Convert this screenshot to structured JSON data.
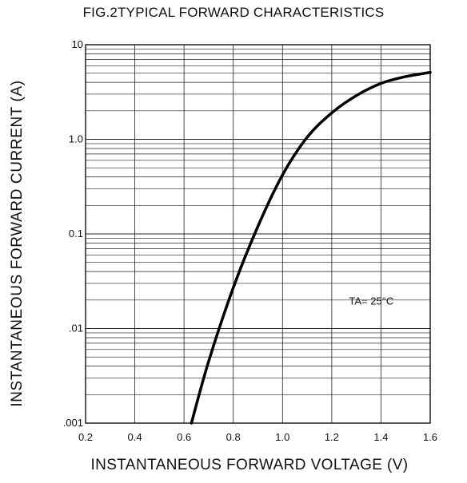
{
  "chart_data": {
    "type": "line",
    "title": "FIG.2TYPICAL FORWARD CHARACTERISTICS",
    "xlabel": "INSTANTANEOUS FORWARD VOLTAGE (V)",
    "ylabel": "INSTANTANEOUS FORWARD CURRENT (A)",
    "x_scale": "linear",
    "y_scale": "log",
    "xlim": [
      0.2,
      1.6
    ],
    "ylim": [
      0.001,
      10
    ],
    "grid": true,
    "x_ticks": [
      "0.2",
      "0.4",
      "0.6",
      "0.8",
      "1.0",
      "1.2",
      "1.4",
      "1.6"
    ],
    "y_ticks": [
      {
        "value": 10,
        "label": "10"
      },
      {
        "value": 1,
        "label": "1.0"
      },
      {
        "value": 0.1,
        "label": "0.1"
      },
      {
        "value": 0.01,
        "label": ".01"
      },
      {
        "value": 0.001,
        "label": ".001"
      }
    ],
    "annotation": "TA= 25°C",
    "series": [
      {
        "x": [
          0.63,
          0.7,
          0.8,
          0.9,
          1.0,
          1.1,
          1.2,
          1.3,
          1.4,
          1.5,
          1.6
        ],
        "y": [
          0.001,
          0.0045,
          0.027,
          0.12,
          0.42,
          1.05,
          1.9,
          2.9,
          3.9,
          4.6,
          5.1
        ]
      }
    ]
  }
}
